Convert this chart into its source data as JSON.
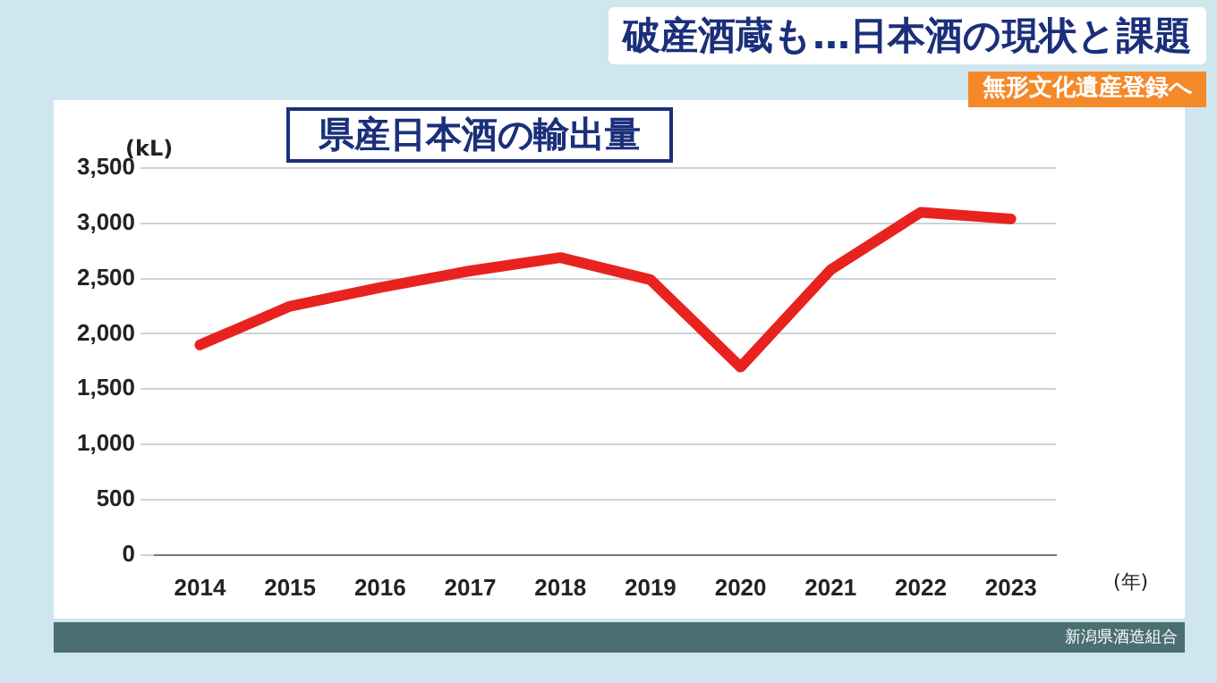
{
  "chart_data": {
    "type": "line",
    "title": "県産日本酒の輸出量",
    "subtitle": "無形文化遺産登録へ",
    "annotations": [
      "破産酒蔵も…日本酒の現状と課題",
      "新潟県酒造組合"
    ],
    "ylabel": "(kL)",
    "xlabel": "(年)",
    "categories": [
      "2014",
      "2015",
      "2016",
      "2017",
      "2018",
      "2019",
      "2020",
      "2021",
      "2022",
      "2023"
    ],
    "series": [
      {
        "color": "#e8231f",
        "values": [
          1900,
          2250,
          2420,
          2570,
          2690,
          2490,
          1700,
          2580,
          3100,
          3040
        ]
      }
    ],
    "ylim": [
      0,
      3500
    ],
    "yticks": [
      0,
      500,
      {
        "value": 1000,
        "label": "1,000"
      },
      {
        "value": 1500,
        "label": "1,500"
      },
      {
        "value": 2000,
        "label": "2,000"
      },
      {
        "value": 2500,
        "label": "2,500"
      },
      {
        "value": 3000,
        "label": "3,000"
      },
      {
        "value": 3500,
        "label": "3,500"
      }
    ],
    "grid": "y",
    "legend": false,
    "marker": "none",
    "line_style": "solid"
  }
}
